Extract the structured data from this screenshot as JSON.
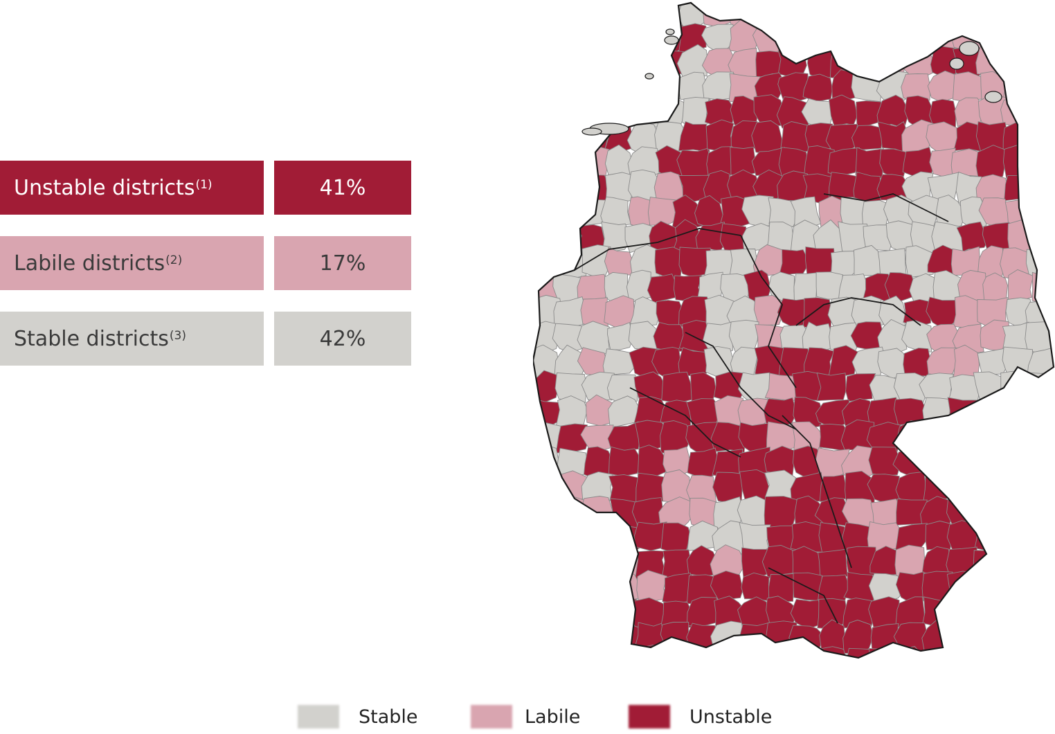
{
  "stats": [
    {
      "key": "unstable",
      "label": "Unstable districts",
      "footnote": "(1)",
      "value": "41%"
    },
    {
      "key": "labile",
      "label": "Labile districts",
      "footnote": "(2)",
      "value": "17%"
    },
    {
      "key": "stable",
      "label": "Stable districts",
      "footnote": "(3)",
      "value": "42%"
    }
  ],
  "legend": [
    {
      "label": "Stable",
      "color": "#d2d1cd"
    },
    {
      "label": "Labile",
      "color": "#d9a5b0"
    },
    {
      "label": "Unstable",
      "color": "#a11c36"
    }
  ],
  "colors": {
    "unstable": "#a11c36",
    "labile": "#d9a5b0",
    "stable": "#d2d1cd",
    "border": "#1a1a1a",
    "district_border": "#8a8a8a"
  },
  "map": {
    "subject": "germany-district-map"
  }
}
